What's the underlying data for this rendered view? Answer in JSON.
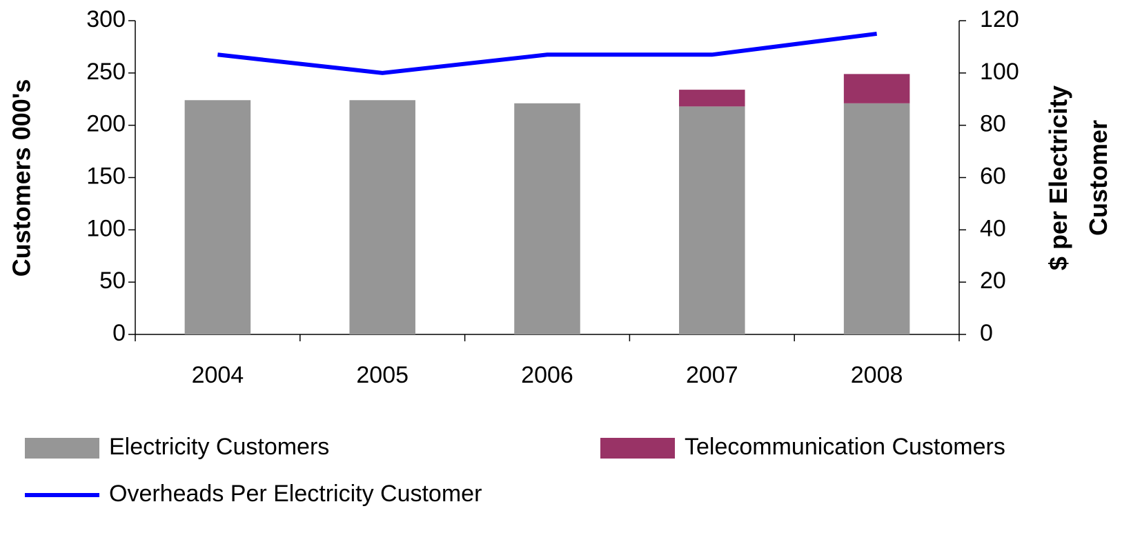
{
  "chart_data": {
    "type": "bar-line",
    "categories": [
      "2004",
      "2005",
      "2006",
      "2007",
      "2008"
    ],
    "y_label": "Customers 000's",
    "y2_label": "$ per Electricity Customer",
    "ylim": [
      0,
      300
    ],
    "yticks": [
      0,
      50,
      100,
      150,
      200,
      250,
      300
    ],
    "y2lim": [
      0,
      120
    ],
    "y2ticks": [
      0,
      20,
      40,
      60,
      80,
      100,
      120
    ],
    "stacked": true,
    "series": [
      {
        "name": "Electricity Customers",
        "type": "bar",
        "color": "#969696",
        "values": [
          224,
          224,
          221,
          218,
          221
        ]
      },
      {
        "name": "Telecommunication Customers",
        "type": "bar",
        "color": "#993366",
        "values": [
          0,
          0,
          0,
          16,
          28
        ]
      },
      {
        "name": "Overheads Per Electricity Customer",
        "type": "line",
        "color": "#0000ff",
        "axis": "y2",
        "values": [
          107,
          100,
          107,
          107,
          115
        ]
      }
    ]
  }
}
